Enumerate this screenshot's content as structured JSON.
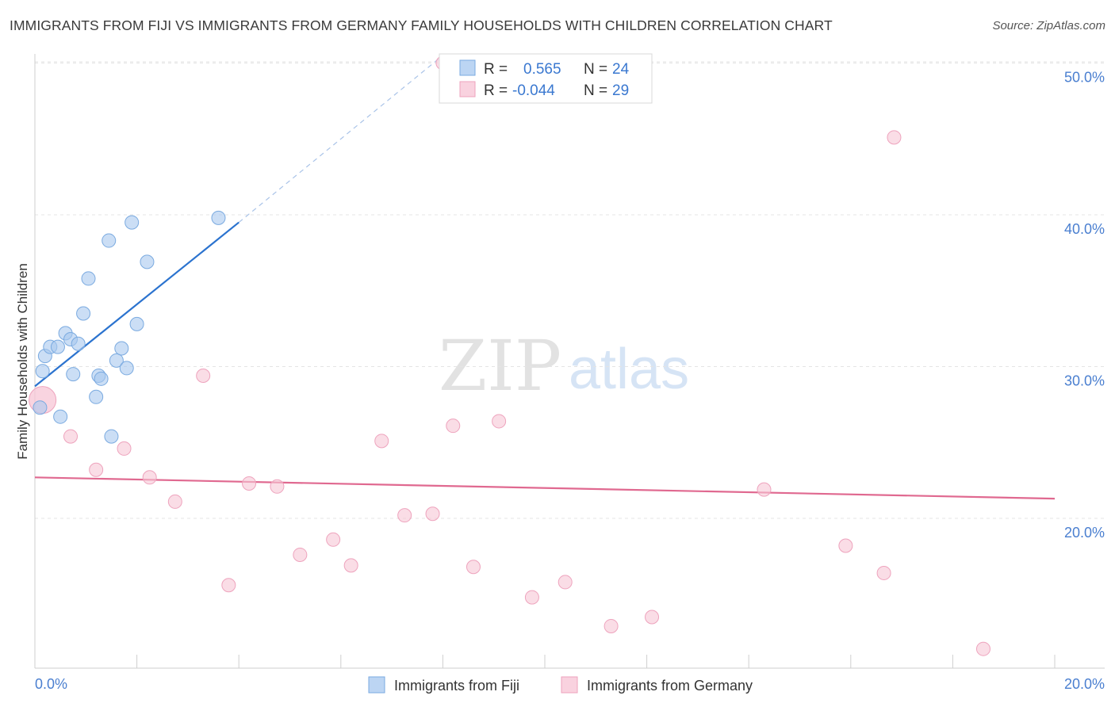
{
  "title": "IMMIGRANTS FROM FIJI VS IMMIGRANTS FROM GERMANY FAMILY HOUSEHOLDS WITH CHILDREN CORRELATION CHART",
  "source": "Source: ZipAtlas.com",
  "chart_data": {
    "type": "scatter",
    "title": "IMMIGRANTS FROM FIJI VS IMMIGRANTS FROM GERMANY FAMILY HOUSEHOLDS WITH CHILDREN CORRELATION CHART",
    "xlabel": "",
    "ylabel": "Family Households with Children",
    "xlim": [
      0,
      20
    ],
    "ylim": [
      11,
      51
    ],
    "x_tick_labels": [
      "0.0%",
      "20.0%"
    ],
    "y_ticks": [
      20,
      30,
      40,
      50
    ],
    "y_tick_labels": [
      "20.0%",
      "30.0%",
      "40.0%",
      "50.0%"
    ],
    "watermark": {
      "zip": "ZIP",
      "atlas": "atlas"
    },
    "series": [
      {
        "name": "Immigrants from Fiji",
        "color": "#a9c8ef",
        "stroke": "#7aaae0",
        "line_color": "#2b73cf",
        "r_label": "R =",
        "r_value": "0.565",
        "n_label": "N =",
        "n_value": "24",
        "trend": {
          "x0": 0.0,
          "y0": 28.7,
          "x1": 4.0,
          "y1": 39.5,
          "dash_x1": 8.0,
          "dash_y1": 50.5
        },
        "points": [
          [
            0.1,
            27.3
          ],
          [
            0.15,
            29.7
          ],
          [
            0.2,
            30.7
          ],
          [
            0.3,
            31.3
          ],
          [
            0.45,
            31.3
          ],
          [
            0.5,
            26.7
          ],
          [
            0.6,
            32.2
          ],
          [
            0.7,
            31.8
          ],
          [
            0.75,
            29.5
          ],
          [
            0.85,
            31.5
          ],
          [
            0.95,
            33.5
          ],
          [
            1.05,
            35.8
          ],
          [
            1.2,
            28.0
          ],
          [
            1.25,
            29.4
          ],
          [
            1.3,
            29.2
          ],
          [
            1.45,
            38.3
          ],
          [
            1.5,
            25.4
          ],
          [
            1.6,
            30.4
          ],
          [
            1.7,
            31.2
          ],
          [
            1.8,
            29.9
          ],
          [
            1.9,
            39.5
          ],
          [
            2.0,
            32.8
          ],
          [
            2.2,
            36.9
          ],
          [
            3.6,
            39.8
          ]
        ]
      },
      {
        "name": "Immigrants from Germany",
        "color": "#f7c6d6",
        "stroke": "#eea3bd",
        "line_color": "#e06990",
        "r_label": "R =",
        "r_value": "-0.044",
        "n_label": "N =",
        "n_value": "29",
        "trend": {
          "x0": 0.0,
          "y0": 22.7,
          "x1": 20.0,
          "y1": 21.3
        },
        "points": [
          [
            0.15,
            27.8
          ],
          [
            0.7,
            25.4
          ],
          [
            1.2,
            23.2
          ],
          [
            1.75,
            24.6
          ],
          [
            2.25,
            22.7
          ],
          [
            2.75,
            21.1
          ],
          [
            3.3,
            29.4
          ],
          [
            3.8,
            15.6
          ],
          [
            4.2,
            22.3
          ],
          [
            4.75,
            22.1
          ],
          [
            5.2,
            17.6
          ],
          [
            5.85,
            18.6
          ],
          [
            6.2,
            16.9
          ],
          [
            6.8,
            25.1
          ],
          [
            7.25,
            20.2
          ],
          [
            7.8,
            20.3
          ],
          [
            8.0,
            50.0
          ],
          [
            8.2,
            26.1
          ],
          [
            8.6,
            16.8
          ],
          [
            9.1,
            26.4
          ],
          [
            9.75,
            14.8
          ],
          [
            10.4,
            15.8
          ],
          [
            11.3,
            12.9
          ],
          [
            12.1,
            13.5
          ],
          [
            14.3,
            21.9
          ],
          [
            15.9,
            18.2
          ],
          [
            16.65,
            16.4
          ],
          [
            16.85,
            45.1
          ],
          [
            18.6,
            11.4
          ]
        ]
      }
    ]
  }
}
